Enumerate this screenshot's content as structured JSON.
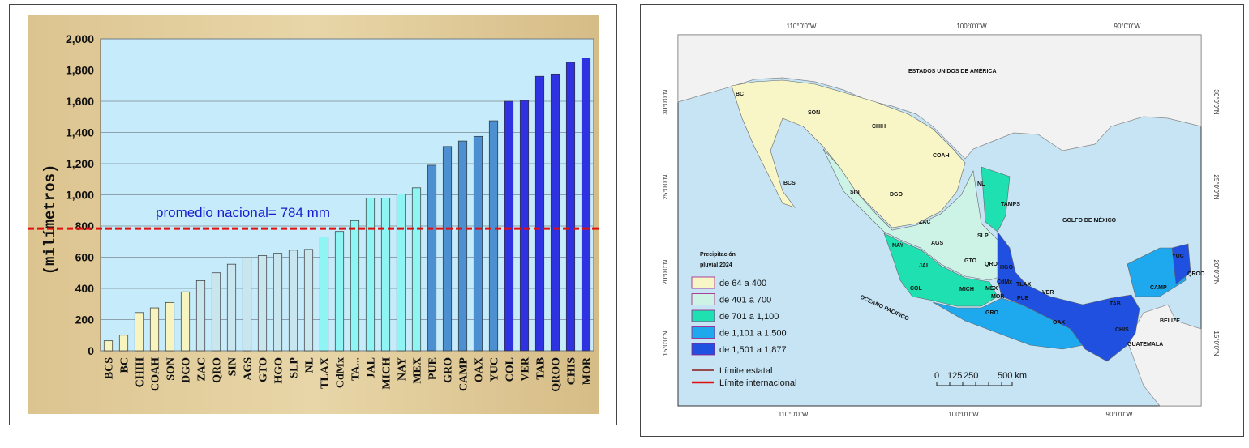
{
  "chart_data": {
    "type": "bar",
    "ylabel": "(milímetros)",
    "ylim": [
      0,
      2000
    ],
    "yticks": [
      "0",
      "200",
      "400",
      "600",
      "800",
      "1,000",
      "1,200",
      "1,400",
      "1,600",
      "1,800",
      "2,000"
    ],
    "categories": [
      "BCS",
      "BC",
      "CHIH",
      "COAH",
      "SON",
      "DGO",
      "ZAC",
      "QRO",
      "SIN",
      "AGS",
      "GTO",
      "HGO",
      "SLP",
      "NL",
      "TLAX",
      "CdMx",
      "TA...",
      "JAL",
      "MICH",
      "NAY",
      "MEX",
      "PUE",
      "GRO",
      "CAMP",
      "OAX",
      "YUC",
      "COL",
      "VER",
      "TAB",
      "QROO",
      "CHIS",
      "MOR"
    ],
    "values": [
      64,
      100,
      245,
      275,
      310,
      378,
      450,
      500,
      555,
      595,
      610,
      625,
      645,
      650,
      730,
      765,
      835,
      980,
      980,
      1005,
      1045,
      1190,
      1310,
      1345,
      1375,
      1475,
      1600,
      1605,
      1760,
      1775,
      1850,
      1877
    ],
    "annotation": {
      "text": "promedio nacional= 784 mm",
      "value": 784
    },
    "colors": {
      "c1": "#f8f4c0",
      "c2": "#c9e6ee",
      "c3": "#8ef4f4",
      "c4": "#4d90d2",
      "c5": "#2e32e0"
    },
    "color_class": [
      1,
      1,
      1,
      1,
      1,
      1,
      2,
      2,
      2,
      2,
      2,
      2,
      2,
      2,
      3,
      3,
      3,
      3,
      3,
      3,
      3,
      4,
      4,
      4,
      4,
      4,
      5,
      5,
      5,
      5,
      5,
      5
    ]
  },
  "map": {
    "country_label": "ESTADOS UNIDOS DE AMÉRICA",
    "gulf_label": "GOLFO DE MÉXICO",
    "ocean_label": "OCEANO PACIFICO",
    "belize": "BELIZE",
    "guatemala": "GUATEMALA",
    "top_coords": [
      "110°0'0\"W",
      "100°0'0\"W",
      "90°0'0\"W"
    ],
    "bottom_coords": [
      "110°0'0\"W",
      "100°0'0\"W",
      "90°0'0\"W"
    ],
    "left_coords": [
      "30°0'0\"N",
      "25°0'0\"N",
      "20°0'0\"N",
      "15°0'0\"N"
    ],
    "right_coords": [
      "30°0'0\"N",
      "25°0'0\"N",
      "20°0'0\"N",
      "15°0'0\"N"
    ],
    "states": [
      {
        "t": "BC",
        "x": 117,
        "y": 112
      },
      {
        "t": "SON",
        "x": 206,
        "y": 135
      },
      {
        "t": "CHIH",
        "x": 285,
        "y": 152
      },
      {
        "t": "COAH",
        "x": 360,
        "y": 188
      },
      {
        "t": "NL",
        "x": 415,
        "y": 223
      },
      {
        "t": "TAMPS",
        "x": 444,
        "y": 248
      },
      {
        "t": "SIN",
        "x": 258,
        "y": 233
      },
      {
        "t": "DGO",
        "x": 307,
        "y": 236
      },
      {
        "t": "BCS",
        "x": 176,
        "y": 222
      },
      {
        "t": "ZAC",
        "x": 343,
        "y": 270
      },
      {
        "t": "SLP",
        "x": 415,
        "y": 287
      },
      {
        "t": "AGS",
        "x": 358,
        "y": 296
      },
      {
        "t": "NAY",
        "x": 310,
        "y": 299
      },
      {
        "t": "JAL",
        "x": 343,
        "y": 324
      },
      {
        "t": "GTO",
        "x": 399,
        "y": 318
      },
      {
        "t": "QRO",
        "x": 424,
        "y": 322
      },
      {
        "t": "HGO",
        "x": 443,
        "y": 326
      },
      {
        "t": "CdMx",
        "x": 439,
        "y": 344
      },
      {
        "t": "TLAX",
        "x": 463,
        "y": 347
      },
      {
        "t": "MEX",
        "x": 425,
        "y": 352
      },
      {
        "t": "MOR",
        "x": 432,
        "y": 362
      },
      {
        "t": "PUE",
        "x": 464,
        "y": 364
      },
      {
        "t": "VER",
        "x": 495,
        "y": 357
      },
      {
        "t": "COL",
        "x": 332,
        "y": 352
      },
      {
        "t": "MICH",
        "x": 393,
        "y": 353
      },
      {
        "t": "GRO",
        "x": 425,
        "y": 382
      },
      {
        "t": "OAX",
        "x": 508,
        "y": 394
      },
      {
        "t": "TAB",
        "x": 578,
        "y": 371
      },
      {
        "t": "CHIS",
        "x": 585,
        "y": 403
      },
      {
        "t": "CAMP",
        "x": 628,
        "y": 351
      },
      {
        "t": "YUC",
        "x": 655,
        "y": 312
      },
      {
        "t": "QROO",
        "x": 674,
        "y": 334
      }
    ],
    "legend_title_1": "Precipitación",
    "legend_title_2": "pluvial  2024",
    "legend": [
      {
        "label": "de 64 a 400",
        "color": "#f8f6c6"
      },
      {
        "label": "de 401 a 700",
        "color": "#cdf2e6"
      },
      {
        "label": "de 701 a 1,100",
        "color": "#1fe0b0"
      },
      {
        "label": "de 1,101 a 1,500",
        "color": "#1ea8ee"
      },
      {
        "label": "de 1,501 a 1,877",
        "color": "#2050e0"
      }
    ],
    "limit_state": "Límite estatal",
    "limit_intl": "Límite internacional",
    "scale_labels": [
      "0",
      "125",
      "250",
      "500 km"
    ]
  }
}
